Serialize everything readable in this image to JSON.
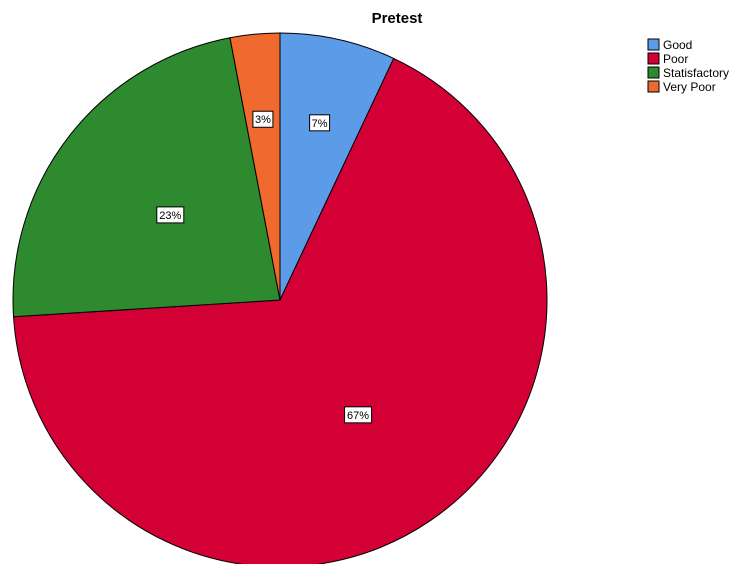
{
  "chart_data": {
    "type": "pie",
    "title": "Pretest",
    "slices": [
      {
        "label": "Good",
        "value": 7,
        "display": "7%",
        "color": "#5B9BE8"
      },
      {
        "label": "Poor",
        "value": 67,
        "display": "67%",
        "color": "#D20034"
      },
      {
        "label": "Statisfactory",
        "value": 23,
        "display": "23%",
        "color": "#2E8A2E"
      },
      {
        "label": "Very Poor",
        "value": 3,
        "display": "3%",
        "color": "#F0692E"
      }
    ],
    "legend_position": "top-right"
  }
}
